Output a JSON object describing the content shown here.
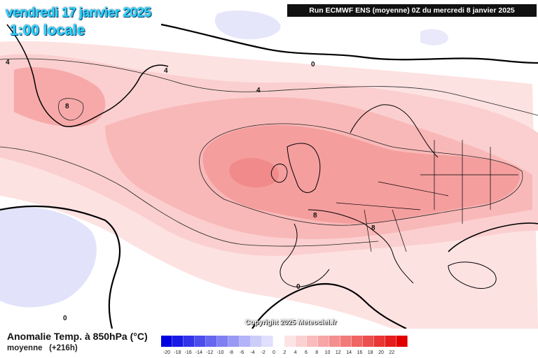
{
  "header": {
    "date": "vendredi 17 janvier 2025",
    "time": "1:00 locale",
    "run_info": "Run ECMWF ENS (moyenne) 0Z du mercredi 8 janvier 2025"
  },
  "copyright": "Copyright 2025 Meteociel.fr",
  "footer": {
    "variable": "Anomalie Temp. à 850hPa (°C)",
    "subtitle": "moyenne",
    "lead": "(+216h)"
  },
  "contour_labels": [
    "4",
    "0",
    "4",
    "8",
    "4",
    "8",
    "8",
    "0",
    "0"
  ],
  "legend": {
    "values": [
      "-20",
      "-18",
      "-16",
      "-14",
      "-12",
      "-10",
      "-8",
      "-6",
      "-4",
      "-2",
      "0",
      "2",
      "4",
      "6",
      "8",
      "10",
      "12",
      "14",
      "16",
      "18",
      "20",
      "22"
    ],
    "colors": [
      "#0000e0",
      "#1a1ae6",
      "#3333ea",
      "#4d4dee",
      "#6666f0",
      "#8080f3",
      "#9999f5",
      "#b3b3f8",
      "#ccccfa",
      "#e0e0fc",
      "#ffffff",
      "#fde4e4",
      "#fbd0d0",
      "#f9bbbb",
      "#f7a5a5",
      "#f48f8f",
      "#f27a7a",
      "#ef6464",
      "#ec4d4d",
      "#e93535",
      "#e51d1d",
      "#e00000"
    ]
  },
  "colors": {
    "title_text": "#2ad6ff",
    "banner_bg": "#111111",
    "coast": "#000000"
  }
}
